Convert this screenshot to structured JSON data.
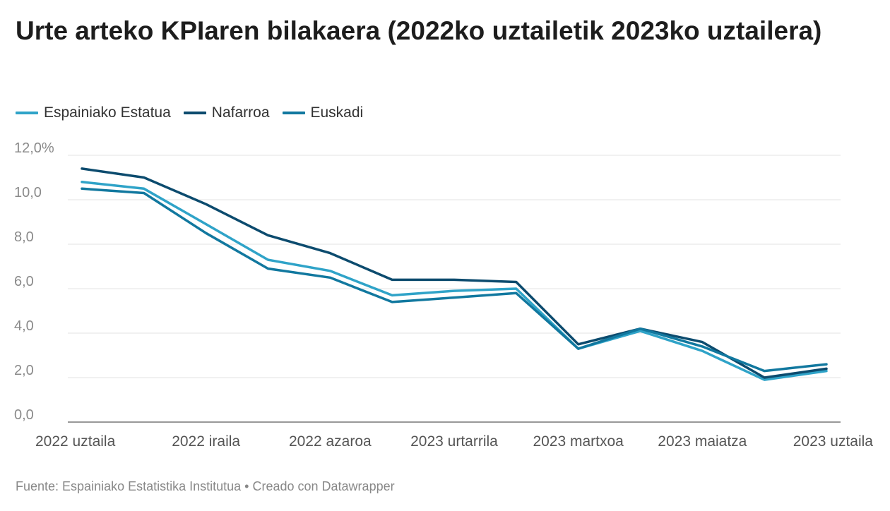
{
  "title": "Urte arteko KPIaren bilakaera (2022ko uztailetik 2023ko uztailera)",
  "source": "Fuente: Espainiako Estatistika Institutua • Creado con Datawrapper",
  "chart_data": {
    "type": "line",
    "title": "Urte arteko KPIaren bilakaera (2022ko uztailetik 2023ko uztailera)",
    "x": [
      "2022-07",
      "2022-08",
      "2022-09",
      "2022-10",
      "2022-11",
      "2022-12",
      "2023-01",
      "2023-02",
      "2023-03",
      "2023-04",
      "2023-05",
      "2023-06",
      "2023-07"
    ],
    "x_tick_labels": [
      "2022 uztaila",
      "2022 iraila",
      "2022 azaroa",
      "2023 urtarrila",
      "2023 martxoa",
      "2023 maiatza",
      "2023 uztaila"
    ],
    "x_tick_indices": [
      0,
      2,
      4,
      6,
      8,
      10,
      12
    ],
    "y_ticks": [
      "0,0",
      "2,0",
      "4,0",
      "6,0",
      "8,0",
      "10,0",
      "12,0%"
    ],
    "y_tick_values": [
      0,
      2,
      4,
      6,
      8,
      10,
      12
    ],
    "ylim": [
      0,
      12
    ],
    "xlabel": "",
    "ylabel": "",
    "grid": true,
    "legend_position": "top-left",
    "series": [
      {
        "name": "Espainiako Estatua",
        "color": "#2fa3c8",
        "values": [
          10.8,
          10.5,
          8.9,
          7.3,
          6.8,
          5.7,
          5.9,
          6.0,
          3.3,
          4.1,
          3.2,
          1.9,
          2.3
        ]
      },
      {
        "name": "Nafarroa",
        "color": "#0c4b6e",
        "values": [
          11.4,
          11.0,
          9.8,
          8.4,
          7.6,
          6.4,
          6.4,
          6.3,
          3.5,
          4.2,
          3.6,
          2.0,
          2.4
        ]
      },
      {
        "name": "Euskadi",
        "color": "#11789f",
        "values": [
          10.5,
          10.3,
          8.5,
          6.9,
          6.5,
          5.4,
          5.6,
          5.8,
          3.3,
          4.2,
          3.4,
          2.3,
          2.6
        ]
      }
    ]
  }
}
